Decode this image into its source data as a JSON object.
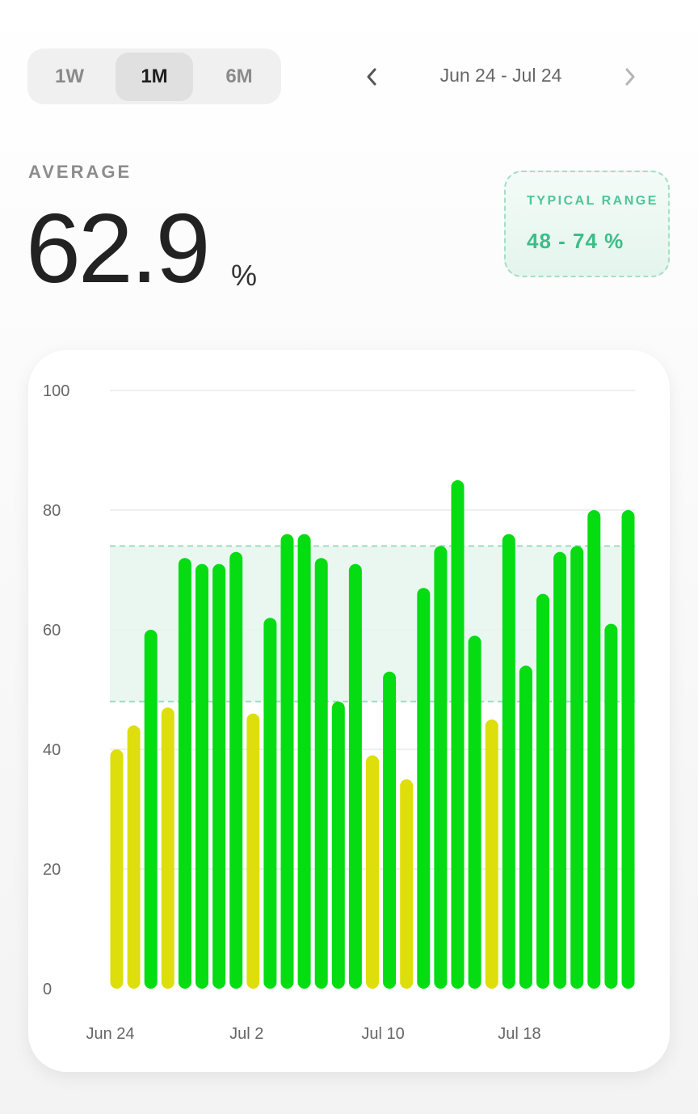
{
  "period_selector": {
    "options": [
      "1W",
      "1M",
      "6M"
    ],
    "selected": "1M"
  },
  "date_nav": {
    "range_label": "Jun 24 - Jul 24",
    "prev_icon": "chevron-left-icon",
    "next_icon": "chevron-right-icon"
  },
  "summary": {
    "label": "AVERAGE",
    "value": "62.9",
    "unit": "%"
  },
  "typical_range": {
    "label": "TYPICAL RANGE",
    "value": "48 - 74 %",
    "low": 48,
    "high": 74
  },
  "colors": {
    "in_range": "#05dc12",
    "out_of_range": "#dede0c",
    "band_fill": "#e6f6ee",
    "band_stroke": "#9fdcc0",
    "accent": "#3dbd89"
  },
  "chart_data": {
    "type": "bar",
    "x": [
      "Jun 24",
      "Jun 25",
      "Jun 26",
      "Jun 27",
      "Jun 28",
      "Jun 29",
      "Jun 30",
      "Jul 1",
      "Jul 2",
      "Jul 3",
      "Jul 4",
      "Jul 5",
      "Jul 6",
      "Jul 7",
      "Jul 8",
      "Jul 9",
      "Jul 10",
      "Jul 11",
      "Jul 12",
      "Jul 13",
      "Jul 14",
      "Jul 15",
      "Jul 16",
      "Jul 17",
      "Jul 18",
      "Jul 19",
      "Jul 20",
      "Jul 21",
      "Jul 22",
      "Jul 23",
      "Jul 24"
    ],
    "values": [
      40,
      44,
      60,
      47,
      72,
      71,
      71,
      73,
      46,
      62,
      76,
      76,
      72,
      48,
      71,
      39,
      53,
      35,
      67,
      74,
      85,
      59,
      45,
      76,
      54,
      66,
      73,
      74,
      80,
      61,
      80
    ],
    "ylim": [
      0,
      100
    ],
    "yticks": [
      0,
      20,
      40,
      60,
      80,
      100
    ],
    "xtick_labels": [
      "Jun 24",
      "Jul 2",
      "Jul 10",
      "Jul 18"
    ],
    "reference_band": [
      48,
      74
    ],
    "grid": true,
    "legend": "none"
  }
}
